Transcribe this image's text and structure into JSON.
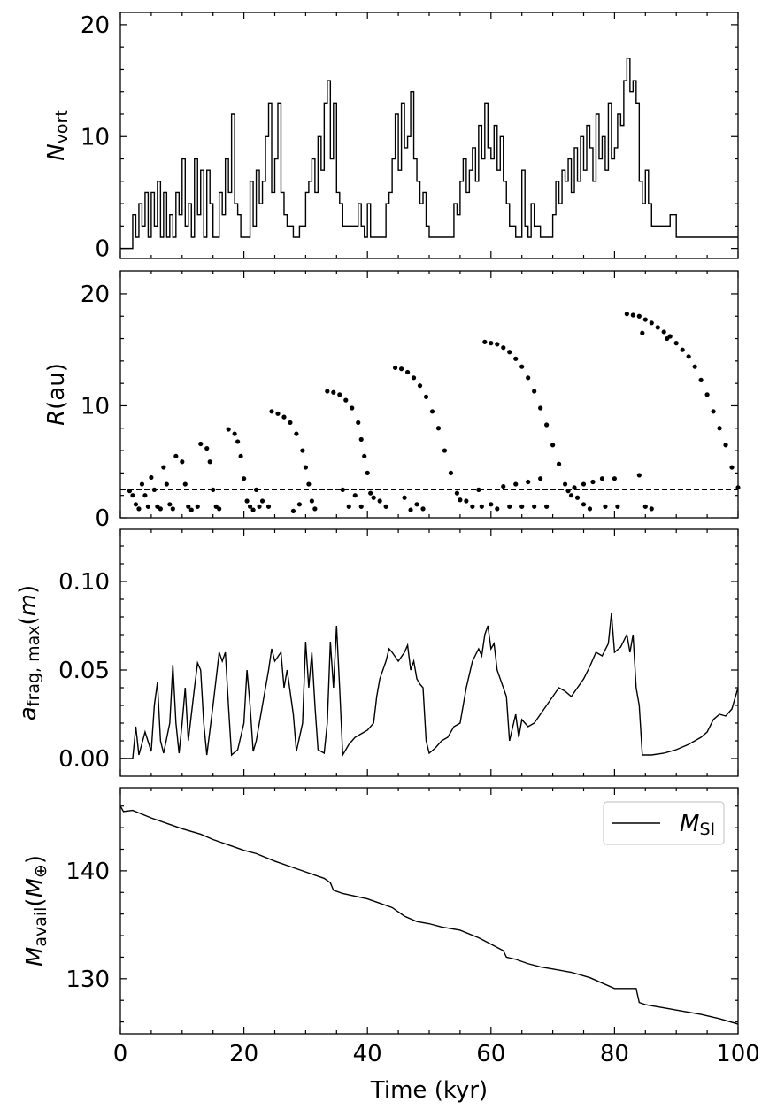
{
  "chart_data": [
    {
      "type": "line",
      "step": true,
      "color": "#000000",
      "ylabel": [
        {
          "text": "N",
          "style": "italic"
        },
        {
          "text": "vort",
          "style": "sub"
        }
      ],
      "xlim": [
        0,
        100
      ],
      "xticks": [
        0,
        20,
        40,
        60,
        80,
        100
      ],
      "xminor": [
        5,
        10,
        15,
        25,
        30,
        35,
        45,
        50,
        55,
        65,
        70,
        75,
        85,
        90,
        95
      ],
      "xtick_labels": false,
      "ylim": [
        -0.9,
        21.1
      ],
      "yticks": [
        0,
        10,
        20
      ],
      "yminor": [
        2,
        4,
        6,
        8,
        12,
        14,
        16,
        18
      ],
      "x": [
        0,
        2,
        2.5,
        3,
        3.5,
        4,
        4.5,
        5,
        5.5,
        6,
        6.5,
        7,
        7.5,
        8,
        8.5,
        9,
        9.5,
        10,
        10.5,
        11,
        11.5,
        12,
        12.5,
        13,
        13.5,
        14,
        14.5,
        15,
        16,
        16.5,
        17,
        17.5,
        18,
        18.5,
        19,
        19.5,
        20,
        21,
        21.5,
        22,
        22.5,
        23,
        23.5,
        24,
        24.5,
        25,
        25.5,
        26,
        26.5,
        27,
        28,
        29,
        30,
        30.5,
        31,
        31.5,
        32,
        32.5,
        33,
        33.5,
        34,
        34.5,
        35,
        35.5,
        36,
        38,
        38.5,
        39,
        39.5,
        40,
        40.5,
        41,
        43,
        43.5,
        44,
        44.5,
        45,
        45.5,
        46,
        46.5,
        47,
        47.5,
        48,
        48.5,
        49,
        49.5,
        50,
        54,
        54.5,
        55,
        55.5,
        56,
        56.5,
        57,
        57.5,
        58,
        58.5,
        59,
        59.5,
        60,
        60.5,
        61,
        61.5,
        62,
        62.5,
        63,
        64,
        65,
        65.5,
        66,
        66.5,
        67,
        68,
        70,
        70.5,
        71,
        71.5,
        72,
        72.5,
        73,
        73.5,
        74,
        74.5,
        75,
        75.5,
        76,
        76.5,
        77,
        77.5,
        78,
        78.5,
        79,
        79.5,
        80,
        80.5,
        81,
        81.5,
        82,
        82.5,
        83,
        83.5,
        84,
        84.5,
        85,
        85.5,
        86,
        88,
        89,
        90,
        100
      ],
      "values": [
        0,
        3,
        1,
        4,
        2,
        5,
        1,
        5,
        2,
        6,
        1,
        5,
        1,
        3,
        1,
        5,
        3,
        8,
        2,
        4,
        1,
        8,
        3,
        7,
        1,
        7,
        4,
        1,
        5,
        3,
        8,
        5,
        12,
        4,
        3,
        1,
        1,
        6,
        2,
        7,
        4,
        6,
        10,
        13,
        5,
        8,
        13,
        5,
        3,
        2,
        1,
        2,
        5,
        6,
        8,
        5,
        10,
        7,
        13,
        15,
        8,
        13,
        5,
        4,
        2,
        2,
        4,
        2,
        1,
        4,
        1,
        1,
        4,
        5,
        8,
        12,
        7,
        13,
        9,
        10,
        14,
        8,
        6,
        4,
        5,
        2,
        1,
        4,
        3,
        6,
        8,
        5,
        7,
        9,
        6,
        11,
        8,
        13,
        9,
        8,
        11,
        7,
        10,
        6,
        4,
        2,
        1,
        7,
        2,
        1,
        4,
        2,
        1,
        3,
        6,
        4,
        7,
        6,
        8,
        5,
        9,
        6,
        10,
        7,
        11,
        9,
        6,
        12,
        8,
        10,
        7,
        13,
        8,
        9,
        12,
        11,
        15,
        17,
        14,
        15,
        13,
        6,
        4,
        7,
        4,
        2,
        2,
        3,
        1,
        1
      ]
    },
    {
      "type": "scatter",
      "color": "#000000",
      "ylabel": [
        {
          "text": "R",
          "style": "italic"
        },
        {
          "text": "(au)",
          "style": "normal"
        }
      ],
      "xlim": [
        0,
        100
      ],
      "xticks": [
        0,
        20,
        40,
        60,
        80,
        100
      ],
      "xminor": [
        5,
        10,
        15,
        25,
        30,
        35,
        45,
        50,
        55,
        65,
        70,
        75,
        85,
        90,
        95
      ],
      "xtick_labels": false,
      "ylim": [
        0,
        22.05
      ],
      "yticks": [
        0,
        10,
        20
      ],
      "yminor": [
        2,
        4,
        6,
        8,
        12,
        14,
        16,
        18
      ],
      "hlines": [
        {
          "value": 2.5,
          "style": "dashed"
        }
      ],
      "x": [
        1.5,
        2,
        2.5,
        3,
        3.5,
        4,
        4.5,
        5,
        5.5,
        6,
        6.5,
        7,
        7.5,
        8,
        8.5,
        9,
        10,
        10.5,
        11,
        11.5,
        12.5,
        13,
        14,
        14.5,
        15,
        15.5,
        16,
        17.5,
        18.5,
        19,
        19.5,
        20,
        20.5,
        21,
        21.5,
        22,
        22.5,
        23,
        24,
        24.5,
        25.5,
        26.5,
        27.5,
        28.5,
        29.5,
        30,
        30.5,
        31,
        31.5,
        29,
        28,
        33.5,
        34.5,
        35.5,
        36.5,
        37.5,
        38.5,
        39,
        39.5,
        40,
        40.5,
        41,
        42,
        43,
        36,
        37,
        38,
        39,
        44.5,
        45.5,
        46.5,
        47.5,
        48.5,
        49.5,
        50.5,
        51.5,
        52.5,
        53.5,
        54.5,
        55,
        56,
        57,
        46,
        47,
        48,
        49,
        58,
        58.5,
        59,
        60,
        61,
        62,
        63,
        64,
        65,
        66,
        67,
        68,
        69,
        70,
        71,
        72,
        72.5,
        73,
        74,
        75,
        76,
        60,
        61,
        62,
        63,
        64,
        65,
        66,
        67,
        68,
        69,
        73.5,
        75,
        76.5,
        78,
        78.5,
        80,
        80.5,
        82,
        83,
        84,
        85,
        86,
        87,
        88,
        89,
        90,
        91,
        92,
        93,
        94,
        95,
        96,
        97,
        98,
        99,
        100,
        84,
        85,
        86,
        84.5,
        88.5
      ],
      "values": [
        2.4,
        2,
        1.2,
        0.8,
        3,
        2,
        1,
        3.6,
        2.5,
        1,
        0.8,
        4.5,
        3,
        1.2,
        0.8,
        5.5,
        5,
        3,
        1,
        0.7,
        1,
        6.6,
        6.2,
        5,
        2.5,
        1,
        0.8,
        7.9,
        7.5,
        6.8,
        5.5,
        3.5,
        1.5,
        1,
        0.7,
        2.5,
        1,
        1.5,
        1,
        9.5,
        9.3,
        9,
        8.5,
        7.5,
        6,
        4.5,
        3,
        1.5,
        0.8,
        1.2,
        0.6,
        11.3,
        11.2,
        11,
        10.5,
        9.8,
        8.5,
        7,
        5.5,
        4,
        2.2,
        1.8,
        1.5,
        1,
        2.5,
        1,
        2,
        1,
        13.4,
        13.3,
        13,
        12.5,
        11.8,
        10.8,
        9.5,
        8,
        6,
        4,
        2.2,
        1.6,
        1.5,
        1,
        1.8,
        0.7,
        1.2,
        0.8,
        2.5,
        1,
        15.7,
        15.6,
        15.5,
        15.2,
        14.8,
        14.2,
        13.5,
        12.5,
        11.3,
        9.8,
        8.3,
        6.5,
        4.8,
        3,
        2.4,
        2,
        1.8,
        1.2,
        0.8,
        1.2,
        0.8,
        2.8,
        1,
        3,
        1,
        3.2,
        1,
        3.5,
        1,
        2.7,
        3,
        3.2,
        3.5,
        1,
        3.5,
        1,
        18.2,
        18.1,
        18,
        17.7,
        17.4,
        17,
        16.6,
        16.2,
        15.6,
        15,
        14.4,
        13.5,
        12.3,
        11,
        9.5,
        8,
        6.5,
        4.5,
        2.7,
        3.8,
        1,
        0.8,
        16.5,
        16
      ]
    },
    {
      "type": "line",
      "color": "#000000",
      "ylabel": [
        {
          "text": "a",
          "style": "italic"
        },
        {
          "text": "frag, max",
          "style": "sub"
        },
        {
          "text": "(",
          "style": "normal"
        },
        {
          "text": "m",
          "style": "italic"
        },
        {
          "text": ")",
          "style": "normal"
        }
      ],
      "xlim": [
        0,
        100
      ],
      "xticks": [
        0,
        20,
        40,
        60,
        80,
        100
      ],
      "xminor": [
        5,
        10,
        15,
        25,
        30,
        35,
        45,
        50,
        55,
        65,
        70,
        75,
        85,
        90,
        95
      ],
      "xtick_labels": false,
      "ylim": [
        -0.01,
        0.1295
      ],
      "yticks": [
        {
          "value": 0,
          "label": "0.00"
        },
        0.05,
        {
          "value": 0.1,
          "label": "0.10"
        }
      ],
      "yminor": [
        0.01,
        0.02,
        0.03,
        0.04,
        0.06,
        0.07,
        0.08,
        0.09,
        0.11,
        0.12
      ],
      "x": [
        0,
        2,
        2.5,
        3,
        4,
        5,
        5.5,
        6,
        6.5,
        7,
        8,
        8.5,
        9,
        9.5,
        10,
        10.5,
        11,
        12,
        12.5,
        13,
        13.5,
        14,
        15,
        16,
        16.5,
        17,
        17.5,
        18,
        19,
        20,
        20.5,
        21,
        21.5,
        22,
        23,
        24,
        24.5,
        25,
        26,
        26.5,
        27,
        28,
        28.5,
        29.5,
        30,
        30.5,
        31,
        31.5,
        32,
        33,
        33.5,
        34,
        34.5,
        35,
        35.5,
        36,
        37,
        38,
        39,
        40,
        41,
        41.5,
        42,
        43,
        43.5,
        44,
        45,
        46,
        46.5,
        47,
        47.5,
        48,
        48.5,
        49,
        49.5,
        50,
        51,
        52,
        53,
        54,
        55,
        56,
        57,
        58,
        58.5,
        59,
        59.5,
        60,
        60.5,
        61,
        62,
        62.5,
        63,
        64,
        64.5,
        65,
        66,
        67,
        68,
        69,
        70,
        71,
        72,
        73,
        74,
        75,
        76,
        77,
        78,
        79,
        79.5,
        80,
        81,
        82,
        82.5,
        83,
        83.5,
        84,
        84.5,
        86,
        88,
        90,
        92,
        94,
        95,
        96,
        97,
        98,
        99,
        100
      ],
      "values": [
        0,
        0,
        0.018,
        0.002,
        0.015,
        0.004,
        0.03,
        0.043,
        0.01,
        0.003,
        0.02,
        0.053,
        0.02,
        0.003,
        0.02,
        0.04,
        0.01,
        0.04,
        0.054,
        0.05,
        0.02,
        0.002,
        0.03,
        0.06,
        0.055,
        0.06,
        0.03,
        0.002,
        0.005,
        0.02,
        0.05,
        0.03,
        0.004,
        0.01,
        0.03,
        0.05,
        0.062,
        0.055,
        0.06,
        0.04,
        0.05,
        0.025,
        0.004,
        0.02,
        0.066,
        0.04,
        0.06,
        0.03,
        0.005,
        0.003,
        0.02,
        0.066,
        0.04,
        0.075,
        0.04,
        0.002,
        0.008,
        0.012,
        0.014,
        0.016,
        0.02,
        0.035,
        0.045,
        0.055,
        0.062,
        0.06,
        0.055,
        0.06,
        0.064,
        0.05,
        0.055,
        0.045,
        0.042,
        0.04,
        0.01,
        0.003,
        0.006,
        0.01,
        0.012,
        0.018,
        0.02,
        0.04,
        0.055,
        0.062,
        0.058,
        0.07,
        0.075,
        0.062,
        0.065,
        0.05,
        0.04,
        0.035,
        0.01,
        0.025,
        0.012,
        0.022,
        0.018,
        0.02,
        0.025,
        0.03,
        0.035,
        0.04,
        0.038,
        0.035,
        0.04,
        0.045,
        0.052,
        0.06,
        0.058,
        0.065,
        0.082,
        0.06,
        0.063,
        0.07,
        0.06,
        0.07,
        0.04,
        0.03,
        0.002,
        0.002,
        0.003,
        0.005,
        0.008,
        0.012,
        0.015,
        0.022,
        0.025,
        0.024,
        0.028,
        0.04
      ]
    },
    {
      "type": "line",
      "color": "#000000",
      "ylabel": [
        {
          "text": "M",
          "style": "italic"
        },
        {
          "text": "avail",
          "style": "sub"
        },
        {
          "text": "(",
          "style": "normal"
        },
        {
          "text": "M",
          "style": "italic"
        },
        {
          "text": "⊕",
          "style": "sub"
        },
        {
          "text": ")",
          "style": "normal"
        }
      ],
      "xlabel": "Time (kyr)",
      "xlim": [
        0,
        100
      ],
      "xticks": [
        0,
        20,
        40,
        60,
        80,
        100
      ],
      "xminor": [
        5,
        10,
        15,
        25,
        30,
        35,
        45,
        50,
        55,
        65,
        70,
        75,
        85,
        90,
        95
      ],
      "xtick_labels": true,
      "ylim": [
        124.9,
        147.7
      ],
      "yticks": [
        130,
        140
      ],
      "yminor": [
        126,
        128,
        132,
        134,
        136,
        138,
        142,
        144,
        146
      ],
      "legend": "upper right",
      "series": [
        {
          "name": [
            {
              "text": "M",
              "style": "italic"
            },
            {
              "text": "SI",
              "style": "sub"
            }
          ],
          "color": "#000000",
          "x": [
            0,
            0.5,
            2,
            5,
            8,
            10,
            13,
            15,
            18,
            20,
            22,
            25,
            28,
            30,
            33,
            34,
            34.5,
            36,
            40,
            42,
            44,
            46,
            48,
            50,
            52,
            55,
            58,
            60,
            62,
            62.5,
            64,
            66,
            68,
            70,
            73,
            76,
            78,
            80,
            82,
            83.5,
            84,
            85,
            88,
            90,
            94,
            97,
            100
          ],
          "values": [
            146,
            145.5,
            145.6,
            144.9,
            144.3,
            143.9,
            143.4,
            142.9,
            142.3,
            141.9,
            141.6,
            140.9,
            140.3,
            139.9,
            139.3,
            138.9,
            138.2,
            137.9,
            137.4,
            137,
            136.6,
            135.8,
            135.3,
            135.1,
            134.8,
            134.5,
            133.8,
            133.2,
            132.6,
            132,
            131.8,
            131.4,
            131.1,
            130.9,
            130.6,
            130.1,
            129.6,
            129.1,
            129.1,
            129.1,
            127.8,
            127.6,
            127.3,
            127.1,
            126.7,
            126.3,
            125.8
          ]
        }
      ]
    }
  ]
}
